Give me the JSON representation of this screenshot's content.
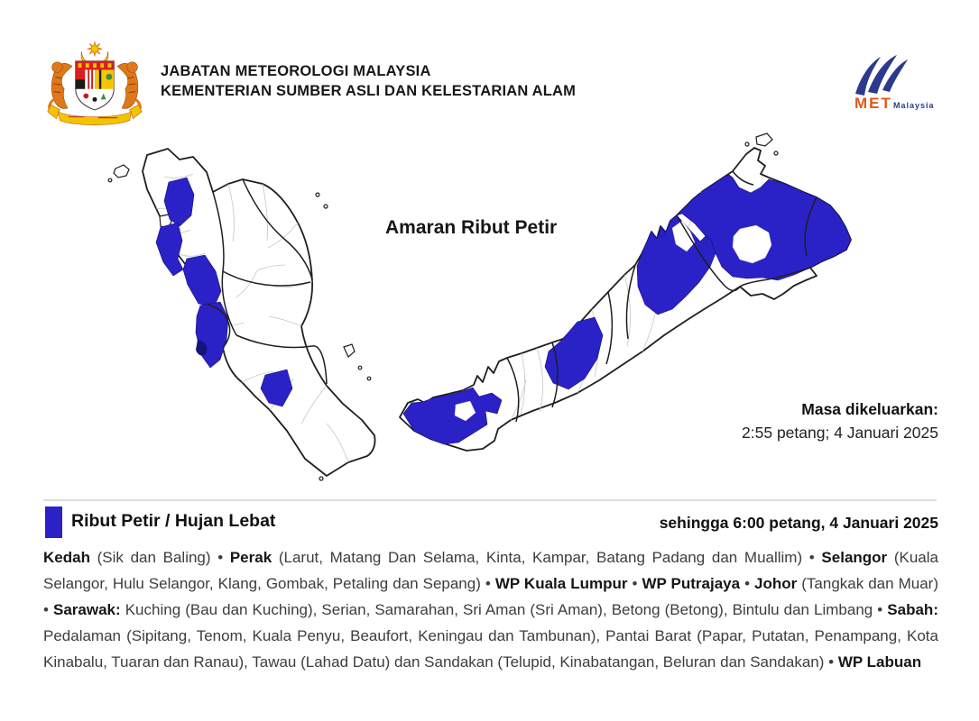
{
  "colors": {
    "warning_blue": "#2A22C6",
    "map_border": "#1f1f1f",
    "district_line": "#c6c6c6",
    "met_orange": "#E2571B",
    "met_navy": "#2C3A8C"
  },
  "header": {
    "agency_line1": "JABATAN METEOROLOGI MALAYSIA",
    "agency_line2": "KEMENTERIAN SUMBER ASLI DAN KELESTARIAN ALAM",
    "met_logo": {
      "met": "MET",
      "malaysia": "Malaysia"
    }
  },
  "map": {
    "title": "Amaran Ribut Petir",
    "issued": {
      "label": "Masa dikeluarkan:",
      "value": "2:55 petang; 4 Januari 2025"
    }
  },
  "legend": {
    "label": "Ribut Petir / Hujan Lebat",
    "validity": "sehingga 6:00 petang, 4 Januari 2025"
  },
  "warning_text": {
    "segments": [
      {
        "text": "Kedah",
        "bold": true
      },
      {
        "text": " (Sik dan Baling) • ",
        "bold": false
      },
      {
        "text": "Perak",
        "bold": true
      },
      {
        "text": " (Larut, Matang Dan Selama, Kinta, Kampar, Batang Padang dan Muallim) • ",
        "bold": false
      },
      {
        "text": "Selangor",
        "bold": true
      },
      {
        "text": " (Kuala Selangor, Hulu Selangor, Klang, Gombak, Petaling dan Sepang) • ",
        "bold": false
      },
      {
        "text": "WP Kuala Lumpur",
        "bold": true
      },
      {
        "text": " • ",
        "bold": false
      },
      {
        "text": "WP Putrajaya",
        "bold": true
      },
      {
        "text": " • ",
        "bold": false
      },
      {
        "text": "Johor",
        "bold": true
      },
      {
        "text": " (Tangkak dan Muar) • ",
        "bold": false
      },
      {
        "text": "Sarawak:",
        "bold": true
      },
      {
        "text": " Kuching (Bau dan Kuching), Serian, Samarahan, Sri Aman (Sri Aman), Betong (Betong), Bintulu dan Limbang • ",
        "bold": false
      },
      {
        "text": "Sabah:",
        "bold": true
      },
      {
        "text": " Pedalaman (Sipitang, Tenom, Kuala Penyu, Beaufort, Keningau dan Tambunan), Pantai Barat (Papar, Putatan, Penampang, Kota Kinabalu, Tuaran dan Ranau), Tawau (Lahad Datu) dan Sandakan (Telupid, Kinabatangan, Beluran dan Sandakan) • ",
        "bold": false
      },
      {
        "text": "WP Labuan",
        "bold": true
      }
    ]
  }
}
